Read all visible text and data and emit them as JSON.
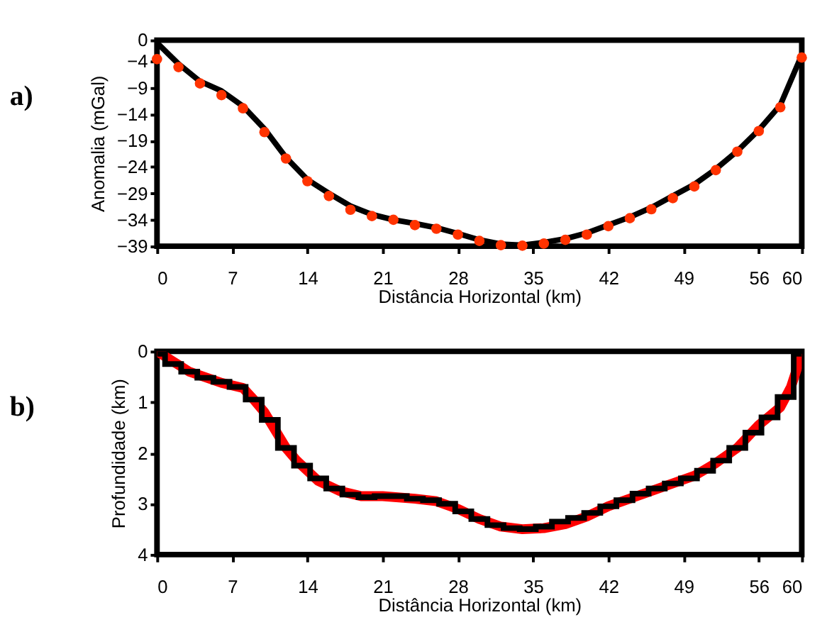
{
  "chart_data": [
    {
      "type": "line",
      "title": "a)",
      "xlabel": "Distância Horizontal (km)",
      "ylabel": "Anomalia (mGal)",
      "xlim": [
        0,
        60
      ],
      "xticks": [
        0,
        7,
        14,
        21,
        28,
        35,
        42,
        49,
        56,
        60
      ],
      "ylim": [
        -39,
        0
      ],
      "yticks": [
        0,
        -4,
        -9,
        -14,
        -19,
        -24,
        -29,
        -34,
        -39
      ],
      "grid": false,
      "legend": false,
      "x": [
        0,
        2,
        4,
        6,
        8,
        10,
        12,
        14,
        16,
        18,
        20,
        22,
        24,
        26,
        28,
        30,
        32,
        34,
        36,
        38,
        40,
        42,
        44,
        46,
        48,
        50,
        52,
        54,
        56,
        58,
        60
      ],
      "series": [
        {
          "type": "line",
          "color": "#000000",
          "values": [
            -0.5,
            -4.5,
            -7.8,
            -9.6,
            -12.5,
            -16.8,
            -22.2,
            -26.4,
            -29.0,
            -31.4,
            -33.0,
            -34.0,
            -34.7,
            -35.5,
            -36.6,
            -37.8,
            -38.6,
            -38.8,
            -38.3,
            -37.6,
            -36.5,
            -35.0,
            -33.5,
            -31.7,
            -29.5,
            -27.3,
            -24.4,
            -21.0,
            -17.0,
            -12.3,
            -2.8
          ]
        },
        {
          "type": "scatter",
          "marker": "circle",
          "color": "#ff3300",
          "values": [
            -3.6,
            -5.1,
            -8.2,
            -10.4,
            -12.9,
            -17.4,
            -22.4,
            -26.7,
            -29.5,
            -32.1,
            -33.3,
            -34.0,
            -35.0,
            -35.7,
            -36.8,
            -38.0,
            -38.8,
            -38.9,
            -38.5,
            -37.8,
            -36.8,
            -35.2,
            -33.7,
            -32.0,
            -29.9,
            -27.7,
            -24.6,
            -21.1,
            -17.2,
            -12.7,
            -3.3
          ]
        }
      ]
    },
    {
      "type": "line",
      "title": "b)",
      "xlabel": "Distância Horizontal (km)",
      "ylabel": "Profundidade (km)",
      "xlim": [
        0,
        60
      ],
      "xticks": [
        0,
        7,
        14,
        21,
        28,
        35,
        42,
        49,
        56,
        60
      ],
      "ylim": [
        4,
        0
      ],
      "yticks": [
        0,
        1,
        2,
        3,
        4
      ],
      "grid": false,
      "legend": false,
      "series": [
        {
          "type": "line",
          "color": "#ff0000",
          "x": [
            0,
            3,
            6,
            8,
            9,
            10,
            11,
            12,
            13,
            14,
            15,
            17,
            19,
            21,
            24,
            26,
            28,
            30,
            32,
            34,
            36,
            38,
            40,
            42,
            44,
            46,
            48,
            50,
            52,
            54,
            56,
            58,
            59,
            60
          ],
          "values": [
            0,
            0.4,
            0.62,
            0.72,
            0.95,
            1.2,
            1.55,
            1.9,
            2.15,
            2.35,
            2.55,
            2.75,
            2.85,
            2.85,
            2.9,
            2.95,
            3.1,
            3.3,
            3.45,
            3.5,
            3.48,
            3.4,
            3.25,
            3.05,
            2.9,
            2.75,
            2.6,
            2.45,
            2.2,
            1.9,
            1.45,
            1.1,
            0.7,
            0.05
          ]
        },
        {
          "type": "step",
          "color": "#000000",
          "x": [
            0,
            1.5,
            3,
            4.5,
            6,
            7.5,
            9,
            10.5,
            12,
            13.5,
            15,
            16.5,
            18,
            19.5,
            21,
            22.5,
            24,
            25.5,
            27,
            28.5,
            30,
            31.5,
            33,
            34.5,
            36,
            37.5,
            39,
            40.5,
            42,
            43.5,
            45,
            46.5,
            48,
            49.5,
            51,
            52.5,
            54,
            55.5,
            57,
            58.5,
            60
          ],
          "values": [
            0.05,
            0.25,
            0.4,
            0.52,
            0.6,
            0.7,
            0.95,
            1.35,
            1.9,
            2.25,
            2.5,
            2.7,
            2.82,
            2.87,
            2.85,
            2.85,
            2.9,
            2.93,
            3.0,
            3.15,
            3.3,
            3.42,
            3.48,
            3.5,
            3.45,
            3.35,
            3.28,
            3.18,
            3.05,
            2.93,
            2.8,
            2.7,
            2.6,
            2.5,
            2.35,
            2.15,
            1.9,
            1.6,
            1.3,
            0.9,
            0.05
          ]
        }
      ]
    }
  ]
}
